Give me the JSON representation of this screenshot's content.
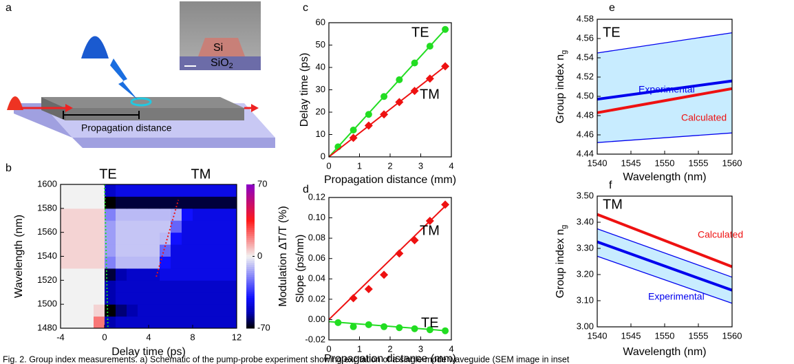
{
  "schematic": {
    "label": "a",
    "material_core": "Si",
    "material_clad": "SiO",
    "material_clad_sub": "2",
    "distance_label": "Propagation distance"
  },
  "chart_data": [
    {
      "type": "heatmap",
      "label": "b",
      "xlabel": "Delay time (ps)",
      "ylabel": "Wavelength (nm)",
      "top_labels": [
        "TE",
        "TM"
      ],
      "xlim": [
        -4,
        12
      ],
      "xticks": [
        -4,
        0,
        4,
        8,
        12
      ],
      "ylim": [
        1480,
        1600
      ],
      "yticks": [
        1480,
        1500,
        1520,
        1540,
        1560,
        1580,
        1600
      ],
      "colorbar_label": "Modulation ΔT/T (%)",
      "zlim": [
        -70,
        70
      ],
      "zticks": [
        -70,
        0,
        70
      ],
      "colorscale": [
        {
          "value": -70,
          "color": "#000000"
        },
        {
          "value": -55,
          "color": "#0000b0"
        },
        {
          "value": -40,
          "color": "#1010ff"
        },
        {
          "value": 0,
          "color": "#f2f2f2"
        },
        {
          "value": 35,
          "color": "#ff1a1a"
        },
        {
          "value": 70,
          "color": "#8a00c8"
        }
      ],
      "x": [
        -3.5,
        -2.5,
        -1.5,
        -0.5,
        0.5,
        1.5,
        2.5,
        3.5,
        4.5,
        5.5,
        6.5,
        7.5,
        8.5,
        9.5,
        10.5,
        11.5
      ],
      "y": [
        1485,
        1495,
        1505,
        1515,
        1525,
        1535,
        1545,
        1555,
        1565,
        1575,
        1585,
        1595
      ],
      "z": [
        [
          0,
          0,
          0,
          20,
          -55,
          -50,
          -50,
          -50,
          -50,
          -50,
          -50,
          -50,
          -50,
          -50,
          -50,
          -50
        ],
        [
          0,
          0,
          0,
          5,
          -70,
          -60,
          -55,
          -50,
          -50,
          -50,
          -50,
          -50,
          -50,
          -50,
          -50,
          -50
        ],
        [
          0,
          0,
          0,
          0,
          -55,
          -50,
          -50,
          -50,
          -50,
          -50,
          -50,
          -50,
          -50,
          -50,
          -50,
          -50
        ],
        [
          0,
          0,
          0,
          0,
          -55,
          -50,
          -50,
          -50,
          -50,
          -50,
          -50,
          -50,
          -50,
          -50,
          -50,
          -50
        ],
        [
          0,
          0,
          0,
          0,
          -65,
          -55,
          -50,
          -50,
          -50,
          -45,
          -45,
          -45,
          -45,
          -45,
          -45,
          -45
        ],
        [
          5,
          5,
          5,
          5,
          -20,
          -10,
          -10,
          -10,
          -10,
          -40,
          -45,
          -45,
          -45,
          -45,
          -45,
          -45
        ],
        [
          5,
          5,
          5,
          5,
          -15,
          -8,
          -8,
          -8,
          -8,
          -25,
          -45,
          -45,
          -45,
          -45,
          -45,
          -45
        ],
        [
          5,
          5,
          5,
          5,
          -15,
          -8,
          -8,
          -8,
          -8,
          -10,
          -40,
          -45,
          -45,
          -45,
          -45,
          -45
        ],
        [
          5,
          5,
          5,
          5,
          -15,
          -8,
          -8,
          -8,
          -8,
          -8,
          -25,
          -45,
          -45,
          -45,
          -45,
          -45
        ],
        [
          5,
          5,
          5,
          5,
          -20,
          -10,
          -10,
          -10,
          -10,
          -10,
          -12,
          -40,
          -45,
          -45,
          -45,
          -45
        ],
        [
          0,
          0,
          0,
          0,
          -70,
          -65,
          -65,
          -65,
          -65,
          -65,
          -65,
          -65,
          -65,
          -65,
          -65,
          -65
        ],
        [
          0,
          0,
          0,
          0,
          -50,
          -45,
          -45,
          -45,
          -45,
          -45,
          -45,
          -45,
          -45,
          -45,
          -45,
          -45
        ]
      ],
      "guides": [
        {
          "color": "#22dd22",
          "x": [
            0,
            0.3
          ],
          "values": [
            1600,
            1480
          ]
        },
        {
          "color": "#ee1111",
          "x": [
            4.7,
            6.7
          ],
          "values": [
            1523,
            1587
          ]
        }
      ]
    },
    {
      "type": "line",
      "label": "c",
      "xlabel": "Propagation distance (mm)",
      "ylabel": "Delay time (ps)",
      "xlim": [
        0,
        4
      ],
      "xticks": [
        0,
        1,
        2,
        3,
        4
      ],
      "ylim": [
        0,
        60
      ],
      "yticks": [
        0,
        10,
        20,
        30,
        40,
        50,
        60
      ],
      "series": [
        {
          "name": "TE",
          "color": "#22dd22",
          "marker": "circle",
          "x": [
            0.3,
            0.8,
            1.3,
            1.8,
            2.3,
            2.8,
            3.3,
            3.8
          ],
          "values": [
            4.5,
            12,
            19,
            27,
            34.5,
            42,
            49.5,
            57
          ],
          "fit": {
            "x": [
              0,
              3.8
            ],
            "values": [
              0,
              57
            ]
          }
        },
        {
          "name": "TM",
          "color": "#ee1111",
          "marker": "diamond",
          "x": [
            0.8,
            1.3,
            1.8,
            2.3,
            2.8,
            3.3,
            3.8
          ],
          "values": [
            8.5,
            14,
            19,
            24.5,
            29.5,
            35,
            40.5
          ],
          "fit": {
            "x": [
              0,
              3.8
            ],
            "values": [
              0,
              40.5
            ]
          }
        }
      ]
    },
    {
      "type": "line",
      "label": "d",
      "xlabel": "Propagation distance (mm)",
      "ylabel": "Slope (ps/nm)",
      "xlim": [
        0,
        4
      ],
      "xticks": [
        0,
        1,
        2,
        3,
        4
      ],
      "ylim": [
        -0.02,
        0.12
      ],
      "yticks": [
        -0.02,
        {
          "value": 0,
          "label": "0.00"
        },
        0.02,
        0.04,
        0.06,
        0.08,
        {
          "value": 0.1,
          "label": "0.10"
        },
        0.12
      ],
      "series": [
        {
          "name": "TM",
          "color": "#ee1111",
          "marker": "diamond",
          "x": [
            0.8,
            1.3,
            1.8,
            2.3,
            2.8,
            3.3,
            3.8
          ],
          "values": [
            0.021,
            0.03,
            0.044,
            0.065,
            0.078,
            0.097,
            0.113
          ],
          "fit": {
            "x": [
              0,
              3.85
            ],
            "values": [
              0,
              0.113
            ]
          }
        },
        {
          "name": "TE",
          "color": "#22dd22",
          "marker": "circle",
          "x": [
            0.3,
            0.8,
            1.3,
            1.8,
            2.3,
            2.8,
            3.3,
            3.8
          ],
          "values": [
            -0.003,
            -0.007,
            -0.005,
            -0.007,
            -0.008,
            -0.009,
            -0.01,
            -0.011
          ],
          "fit": {
            "x": [
              0,
              3.85
            ],
            "values": [
              -0.002,
              -0.011
            ]
          }
        }
      ]
    },
    {
      "type": "band",
      "label": "e",
      "title": "TE",
      "xlabel": "Wavelength (nm)",
      "ylabel": "Group index n",
      "ylabel_sub": "g",
      "xlim": [
        1540,
        1560
      ],
      "xticks": [
        1540,
        1545,
        1550,
        1555,
        1560
      ],
      "ylim": [
        4.44,
        4.58
      ],
      "yticks": [
        4.44,
        4.46,
        4.48,
        {
          "value": 4.5,
          "label": "4.50"
        },
        4.52,
        4.54,
        4.56,
        4.58
      ],
      "band": {
        "color": "#c8ecff",
        "line_color": "#0000ee",
        "upper": {
          "x": [
            1540,
            1560
          ],
          "values": [
            4.545,
            4.566
          ]
        },
        "lower": {
          "x": [
            1540,
            1560
          ],
          "values": [
            4.452,
            4.462
          ]
        }
      },
      "series": [
        {
          "name": "Experimental",
          "color": "#0000ee",
          "x": [
            1540,
            1560
          ],
          "values": [
            4.497,
            4.516
          ]
        },
        {
          "name": "Calculated",
          "color": "#ee1111",
          "x": [
            1540,
            1560
          ],
          "values": [
            4.483,
            4.508
          ]
        }
      ]
    },
    {
      "type": "band",
      "label": "f",
      "title": "TM",
      "xlabel": "Wavelength (nm)",
      "ylabel": "Group index n",
      "ylabel_sub": "g",
      "xlim": [
        1540,
        1560
      ],
      "xticks": [
        1540,
        1545,
        1550,
        1555,
        1560
      ],
      "ylim": [
        3.0,
        3.5
      ],
      "yticks": [
        {
          "value": 3.0,
          "label": "3.00"
        },
        {
          "value": 3.1,
          "label": "3.10"
        },
        {
          "value": 3.2,
          "label": "3.20"
        },
        {
          "value": 3.3,
          "label": "3.30"
        },
        {
          "value": 3.4,
          "label": "3.40"
        },
        {
          "value": 3.5,
          "label": "3.50"
        }
      ],
      "band": {
        "color": "#c8ecff",
        "line_color": "#0000ee",
        "upper": {
          "x": [
            1540,
            1560
          ],
          "values": [
            3.375,
            3.19
          ]
        },
        "lower": {
          "x": [
            1540,
            1560
          ],
          "values": [
            3.27,
            3.09
          ]
        }
      },
      "series": [
        {
          "name": "Calculated",
          "color": "#ee1111",
          "x": [
            1540,
            1560
          ],
          "values": [
            3.43,
            3.23
          ]
        },
        {
          "name": "Experimental",
          "color": "#0000ee",
          "x": [
            1540,
            1560
          ],
          "values": [
            3.325,
            3.14
          ]
        }
      ]
    }
  ],
  "caption": "Fig. 2. Group index measurements. a) Schematic of the pump-probe experiment showing excitation of a single-mode waveguide (SEM image in inset"
}
